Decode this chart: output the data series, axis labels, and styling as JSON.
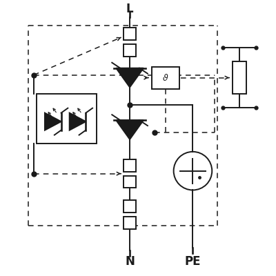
{
  "bg": "#ffffff",
  "lc": "#1a1a1a",
  "lw": 1.4,
  "dlw": 1.1,
  "figsize": [
    4.0,
    4.0
  ],
  "dpi": 100,
  "xlim": [
    0,
    100
  ],
  "ylim": [
    0,
    100
  ],
  "L_label": "L",
  "N_label": "N",
  "PE_label": "PE"
}
